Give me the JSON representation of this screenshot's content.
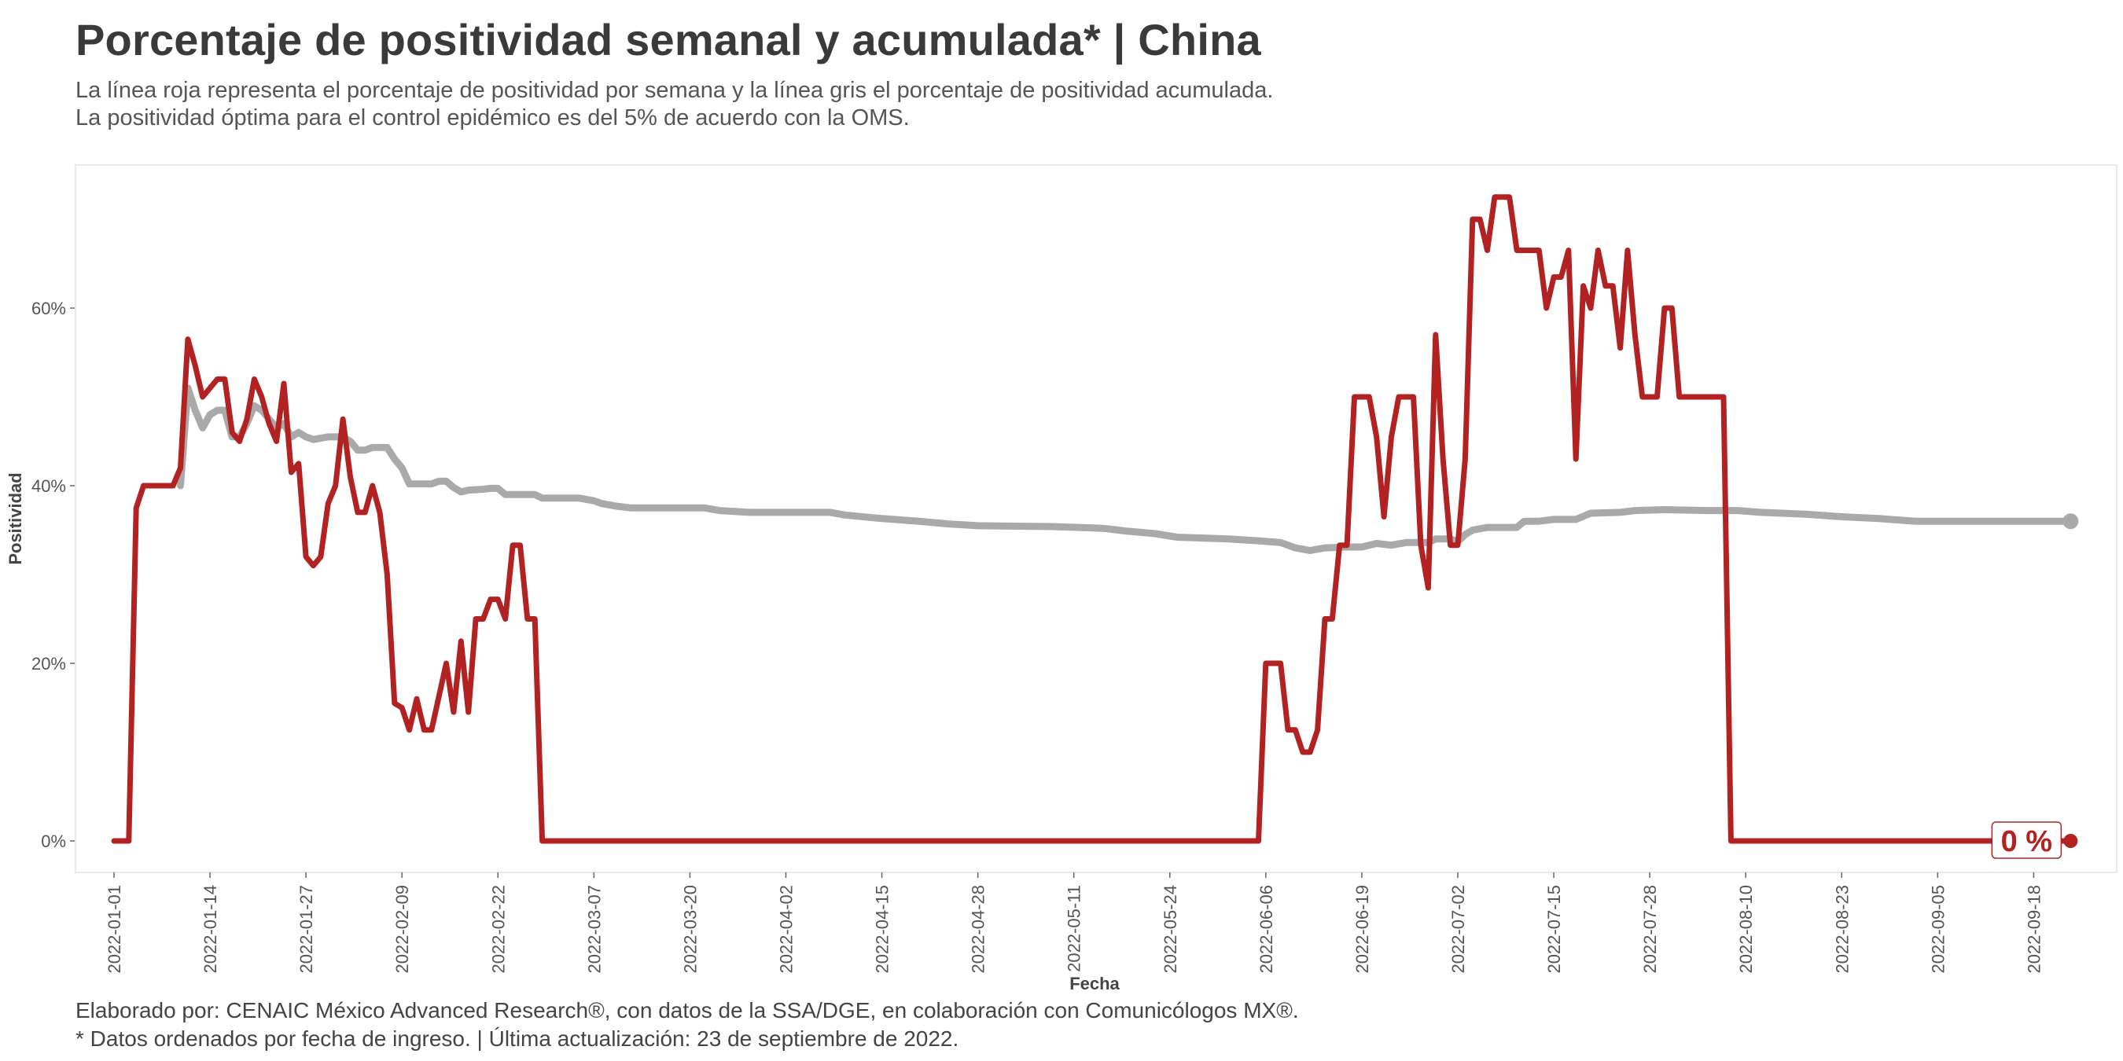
{
  "header": {
    "title": "Porcentaje de positividad semanal y acumulada* | China",
    "subtitle_line1": "La línea roja representa el porcentaje de positividad por semana y la línea gris el porcentaje de positividad acumulada.",
    "subtitle_line2": "La positividad óptima para el control epidémico es del 5% de acuerdo con la OMS."
  },
  "footer": {
    "caption_line1": "Elaborado por: CENAIC México Advanced Research®, con datos de la SSA/DGE, en colaboración con Comunicólogos MX®.",
    "caption_line2": "* Datos ordenados por fecha de ingreso. | Última actualización: 23 de septiembre de 2022."
  },
  "chart_data": {
    "type": "line",
    "xlabel": "Fecha",
    "ylabel": "Positividad",
    "x_range": [
      "2022-01-01",
      "2022-09-23"
    ],
    "ylim": [
      0,
      0.72
    ],
    "grid": false,
    "x_tick_labels": [
      "2022-01-01",
      "2022-01-14",
      "2022-01-27",
      "2022-02-09",
      "2022-02-22",
      "2022-03-07",
      "2022-03-20",
      "2022-04-02",
      "2022-04-15",
      "2022-04-28",
      "2022-05-11",
      "2022-05-24",
      "2022-06-06",
      "2022-06-19",
      "2022-07-02",
      "2022-07-15",
      "2022-07-28",
      "2022-08-10",
      "2022-08-23",
      "2022-09-05",
      "2022-09-18"
    ],
    "y_ticks": [
      {
        "value": 0,
        "label": "0%"
      },
      {
        "value": 0.2,
        "label": "20%"
      },
      {
        "value": 0.4,
        "label": "40%"
      },
      {
        "value": 0.6,
        "label": "60%"
      }
    ],
    "end_label": "0 %",
    "colors": {
      "weekly": "#b22222",
      "cumulative": "#a9a9a9"
    },
    "series": [
      {
        "id": "weekly",
        "points": [
          [
            "2022-01-01",
            0
          ],
          [
            "2022-01-03",
            0
          ],
          [
            "2022-01-04",
            0.375
          ],
          [
            "2022-01-05",
            0.4
          ],
          [
            "2022-01-09",
            0.4
          ],
          [
            "2022-01-10",
            0.42
          ],
          [
            "2022-01-11",
            0.565
          ],
          [
            "2022-01-12",
            0.535
          ],
          [
            "2022-01-13",
            0.5
          ],
          [
            "2022-01-15",
            0.52
          ],
          [
            "2022-01-16",
            0.52
          ],
          [
            "2022-01-17",
            0.46
          ],
          [
            "2022-01-18",
            0.45
          ],
          [
            "2022-01-19",
            0.475
          ],
          [
            "2022-01-20",
            0.52
          ],
          [
            "2022-01-21",
            0.5
          ],
          [
            "2022-01-22",
            0.47
          ],
          [
            "2022-01-23",
            0.45
          ],
          [
            "2022-01-24",
            0.515
          ],
          [
            "2022-01-25",
            0.415
          ],
          [
            "2022-01-26",
            0.425
          ],
          [
            "2022-01-27",
            0.32
          ],
          [
            "2022-01-28",
            0.31
          ],
          [
            "2022-01-29",
            0.32
          ],
          [
            "2022-01-30",
            0.38
          ],
          [
            "2022-01-31",
            0.4
          ],
          [
            "2022-02-01",
            0.475
          ],
          [
            "2022-02-02",
            0.41
          ],
          [
            "2022-02-03",
            0.37
          ],
          [
            "2022-02-04",
            0.37
          ],
          [
            "2022-02-05",
            0.4
          ],
          [
            "2022-02-06",
            0.37
          ],
          [
            "2022-02-07",
            0.3
          ],
          [
            "2022-02-08",
            0.155
          ],
          [
            "2022-02-09",
            0.15
          ],
          [
            "2022-02-10",
            0.125
          ],
          [
            "2022-02-11",
            0.16
          ],
          [
            "2022-02-12",
            0.125
          ],
          [
            "2022-02-13",
            0.125
          ],
          [
            "2022-02-15",
            0.2
          ],
          [
            "2022-02-16",
            0.145
          ],
          [
            "2022-02-17",
            0.225
          ],
          [
            "2022-02-18",
            0.145
          ],
          [
            "2022-02-19",
            0.25
          ],
          [
            "2022-02-20",
            0.25
          ],
          [
            "2022-02-21",
            0.272
          ],
          [
            "2022-02-22",
            0.272
          ],
          [
            "2022-02-23",
            0.25
          ],
          [
            "2022-02-24",
            0.333
          ],
          [
            "2022-02-25",
            0.333
          ],
          [
            "2022-02-26",
            0.25
          ],
          [
            "2022-02-27",
            0.25
          ],
          [
            "2022-02-28",
            0
          ],
          [
            "2022-06-05",
            0
          ],
          [
            "2022-06-06",
            0.2
          ],
          [
            "2022-06-08",
            0.2
          ],
          [
            "2022-06-09",
            0.125
          ],
          [
            "2022-06-10",
            0.125
          ],
          [
            "2022-06-11",
            0.1
          ],
          [
            "2022-06-12",
            0.1
          ],
          [
            "2022-06-13",
            0.125
          ],
          [
            "2022-06-14",
            0.25
          ],
          [
            "2022-06-15",
            0.25
          ],
          [
            "2022-06-16",
            0.333
          ],
          [
            "2022-06-17",
            0.333
          ],
          [
            "2022-06-18",
            0.5
          ],
          [
            "2022-06-20",
            0.5
          ],
          [
            "2022-06-21",
            0.455
          ],
          [
            "2022-06-22",
            0.365
          ],
          [
            "2022-06-23",
            0.455
          ],
          [
            "2022-06-24",
            0.5
          ],
          [
            "2022-06-26",
            0.5
          ],
          [
            "2022-06-27",
            0.333
          ],
          [
            "2022-06-28",
            0.285
          ],
          [
            "2022-06-29",
            0.57
          ],
          [
            "2022-06-30",
            0.43
          ],
          [
            "2022-07-01",
            0.333
          ],
          [
            "2022-07-02",
            0.333
          ],
          [
            "2022-07-03",
            0.43
          ],
          [
            "2022-07-04",
            0.7
          ],
          [
            "2022-07-05",
            0.7
          ],
          [
            "2022-07-06",
            0.665
          ],
          [
            "2022-07-07",
            0.725
          ],
          [
            "2022-07-09",
            0.725
          ],
          [
            "2022-07-10",
            0.665
          ],
          [
            "2022-07-13",
            0.665
          ],
          [
            "2022-07-14",
            0.6
          ],
          [
            "2022-07-15",
            0.635
          ],
          [
            "2022-07-16",
            0.635
          ],
          [
            "2022-07-17",
            0.665
          ],
          [
            "2022-07-18",
            0.43
          ],
          [
            "2022-07-19",
            0.625
          ],
          [
            "2022-07-20",
            0.6
          ],
          [
            "2022-07-21",
            0.665
          ],
          [
            "2022-07-22",
            0.625
          ],
          [
            "2022-07-23",
            0.625
          ],
          [
            "2022-07-24",
            0.555
          ],
          [
            "2022-07-25",
            0.665
          ],
          [
            "2022-07-26",
            0.57
          ],
          [
            "2022-07-27",
            0.5
          ],
          [
            "2022-07-29",
            0.5
          ],
          [
            "2022-07-30",
            0.6
          ],
          [
            "2022-07-31",
            0.6
          ],
          [
            "2022-08-01",
            0.5
          ],
          [
            "2022-08-06",
            0.5
          ],
          [
            "2022-08-07",
            0.5
          ],
          [
            "2022-08-08",
            0
          ],
          [
            "2022-09-23",
            0
          ]
        ]
      },
      {
        "id": "cumulative",
        "points": [
          [
            "2022-01-10",
            0.4
          ],
          [
            "2022-01-11",
            0.51
          ],
          [
            "2022-01-12",
            0.485
          ],
          [
            "2022-01-13",
            0.465
          ],
          [
            "2022-01-14",
            0.48
          ],
          [
            "2022-01-15",
            0.485
          ],
          [
            "2022-01-16",
            0.485
          ],
          [
            "2022-01-17",
            0.455
          ],
          [
            "2022-01-18",
            0.455
          ],
          [
            "2022-01-19",
            0.47
          ],
          [
            "2022-01-20",
            0.49
          ],
          [
            "2022-01-21",
            0.485
          ],
          [
            "2022-01-22",
            0.475
          ],
          [
            "2022-01-23",
            0.465
          ],
          [
            "2022-01-24",
            0.47
          ],
          [
            "2022-01-25",
            0.455
          ],
          [
            "2022-01-26",
            0.46
          ],
          [
            "2022-01-27",
            0.455
          ],
          [
            "2022-01-28",
            0.452
          ],
          [
            "2022-01-30",
            0.455
          ],
          [
            "2022-01-31",
            0.455
          ],
          [
            "2022-02-01",
            0.455
          ],
          [
            "2022-02-02",
            0.45
          ],
          [
            "2022-02-03",
            0.44
          ],
          [
            "2022-02-04",
            0.44
          ],
          [
            "2022-02-05",
            0.443
          ],
          [
            "2022-02-07",
            0.443
          ],
          [
            "2022-02-08",
            0.43
          ],
          [
            "2022-02-09",
            0.42
          ],
          [
            "2022-02-10",
            0.402
          ],
          [
            "2022-02-13",
            0.402
          ],
          [
            "2022-02-14",
            0.405
          ],
          [
            "2022-02-15",
            0.405
          ],
          [
            "2022-02-16",
            0.398
          ],
          [
            "2022-02-17",
            0.393
          ],
          [
            "2022-02-18",
            0.395
          ],
          [
            "2022-02-20",
            0.396
          ],
          [
            "2022-02-21",
            0.397
          ],
          [
            "2022-02-22",
            0.397
          ],
          [
            "2022-02-23",
            0.39
          ],
          [
            "2022-02-27",
            0.39
          ],
          [
            "2022-02-28",
            0.386
          ],
          [
            "2022-03-05",
            0.386
          ],
          [
            "2022-03-07",
            0.383
          ],
          [
            "2022-03-08",
            0.38
          ],
          [
            "2022-03-10",
            0.377
          ],
          [
            "2022-03-12",
            0.375
          ],
          [
            "2022-03-22",
            0.375
          ],
          [
            "2022-03-24",
            0.372
          ],
          [
            "2022-03-28",
            0.37
          ],
          [
            "2022-04-08",
            0.37
          ],
          [
            "2022-04-10",
            0.367
          ],
          [
            "2022-04-15",
            0.363
          ],
          [
            "2022-04-20",
            0.36
          ],
          [
            "2022-04-24",
            0.357
          ],
          [
            "2022-04-28",
            0.355
          ],
          [
            "2022-05-08",
            0.354
          ],
          [
            "2022-05-15",
            0.352
          ],
          [
            "2022-05-18",
            0.349
          ],
          [
            "2022-05-22",
            0.346
          ],
          [
            "2022-05-25",
            0.342
          ],
          [
            "2022-06-01",
            0.34
          ],
          [
            "2022-06-05",
            0.338
          ],
          [
            "2022-06-08",
            0.336
          ],
          [
            "2022-06-10",
            0.33
          ],
          [
            "2022-06-12",
            0.327
          ],
          [
            "2022-06-14",
            0.33
          ],
          [
            "2022-06-17",
            0.331
          ],
          [
            "2022-06-19",
            0.331
          ],
          [
            "2022-06-21",
            0.335
          ],
          [
            "2022-06-23",
            0.333
          ],
          [
            "2022-06-25",
            0.336
          ],
          [
            "2022-06-28",
            0.336
          ],
          [
            "2022-06-29",
            0.34
          ],
          [
            "2022-07-01",
            0.34
          ],
          [
            "2022-07-02",
            0.337
          ],
          [
            "2022-07-03",
            0.345
          ],
          [
            "2022-07-04",
            0.35
          ],
          [
            "2022-07-06",
            0.353
          ],
          [
            "2022-07-10",
            0.353
          ],
          [
            "2022-07-11",
            0.36
          ],
          [
            "2022-07-13",
            0.36
          ],
          [
            "2022-07-15",
            0.362
          ],
          [
            "2022-07-18",
            0.362
          ],
          [
            "2022-07-20",
            0.369
          ],
          [
            "2022-07-24",
            0.37
          ],
          [
            "2022-07-26",
            0.372
          ],
          [
            "2022-07-30",
            0.373
          ],
          [
            "2022-08-05",
            0.372
          ],
          [
            "2022-08-09",
            0.372
          ],
          [
            "2022-08-12",
            0.37
          ],
          [
            "2022-08-18",
            0.368
          ],
          [
            "2022-08-23",
            0.365
          ],
          [
            "2022-08-28",
            0.363
          ],
          [
            "2022-09-02",
            0.36
          ],
          [
            "2022-09-23",
            0.36
          ]
        ]
      }
    ]
  }
}
